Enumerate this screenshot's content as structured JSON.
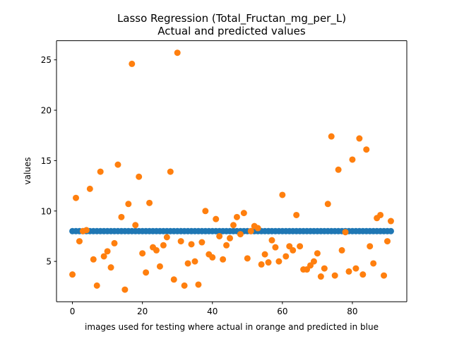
{
  "chart_data": {
    "type": "scatter",
    "title": "Lasso Regression (Total_Fructan_mg_per_L)",
    "subtitle": "Actual and predicted values",
    "xlabel": "images used for testing where actual in orange and predicted in blue",
    "ylabel": "values",
    "xlim": [
      -4.55,
      95.55
    ],
    "ylim": [
      1.0,
      26.9
    ],
    "xticks": [
      0,
      20,
      40,
      60,
      80
    ],
    "yticks": [
      5,
      10,
      15,
      20,
      25
    ],
    "grid": false,
    "series": [
      {
        "color": "#1f77b4",
        "x": [
          0,
          1,
          2,
          3,
          4,
          5,
          6,
          7,
          8,
          9,
          10,
          11,
          12,
          13,
          14,
          15,
          16,
          17,
          18,
          19,
          20,
          21,
          22,
          23,
          24,
          25,
          26,
          27,
          28,
          29,
          30,
          31,
          32,
          33,
          34,
          35,
          36,
          37,
          38,
          39,
          40,
          41,
          42,
          43,
          44,
          45,
          46,
          47,
          48,
          49,
          50,
          51,
          52,
          53,
          54,
          55,
          56,
          57,
          58,
          59,
          60,
          61,
          62,
          63,
          64,
          65,
          66,
          67,
          68,
          69,
          70,
          71,
          72,
          73,
          74,
          75,
          76,
          77,
          78,
          79,
          80,
          81,
          82,
          83,
          84,
          85,
          86,
          87,
          88,
          89,
          90,
          91
        ],
        "y": [
          8,
          8,
          8,
          8,
          8,
          8,
          8,
          8,
          8,
          8,
          8,
          8,
          8,
          8,
          8,
          8,
          8,
          8,
          8,
          8,
          8,
          8,
          8,
          8,
          8,
          8,
          8,
          8,
          8,
          8,
          8,
          8,
          8,
          8,
          8,
          8,
          8,
          8,
          8,
          8,
          8,
          8,
          8,
          8,
          8,
          8,
          8,
          8,
          8,
          8,
          8,
          8,
          8,
          8,
          8,
          8,
          8,
          8,
          8,
          8,
          8,
          8,
          8,
          8,
          8,
          8,
          8,
          8,
          8,
          8,
          8,
          8,
          8,
          8,
          8,
          8,
          8,
          8,
          8,
          8,
          8,
          8,
          8,
          8,
          8,
          8,
          8,
          8,
          8,
          8,
          8,
          8
        ]
      },
      {
        "color": "#ff7f0e",
        "x": [
          0,
          1,
          2,
          3,
          4,
          5,
          6,
          7,
          8,
          9,
          10,
          11,
          12,
          13,
          14,
          15,
          16,
          17,
          18,
          19,
          20,
          21,
          22,
          23,
          24,
          25,
          26,
          27,
          28,
          29,
          30,
          31,
          32,
          33,
          34,
          35,
          36,
          37,
          38,
          39,
          40,
          41,
          42,
          43,
          44,
          45,
          46,
          47,
          48,
          49,
          50,
          51,
          52,
          53,
          54,
          55,
          56,
          57,
          58,
          59,
          60,
          61,
          62,
          63,
          64,
          65,
          66,
          67,
          68,
          69,
          70,
          71,
          72,
          73,
          74,
          75,
          76,
          77,
          78,
          79,
          80,
          81,
          82,
          83,
          84,
          85,
          86,
          87,
          88,
          89,
          90,
          91
        ],
        "y": [
          3.7,
          11.3,
          7.0,
          8.0,
          8.1,
          12.2,
          5.2,
          2.6,
          13.9,
          5.5,
          6.0,
          4.4,
          6.8,
          14.6,
          9.4,
          2.2,
          10.7,
          24.6,
          8.6,
          13.4,
          5.8,
          3.9,
          10.8,
          6.4,
          6.1,
          4.5,
          6.6,
          7.4,
          13.9,
          3.2,
          25.7,
          7.0,
          2.6,
          4.8,
          6.7,
          5.0,
          2.7,
          6.9,
          10.0,
          5.7,
          5.4,
          9.2,
          7.5,
          5.2,
          6.6,
          7.3,
          8.6,
          9.4,
          7.7,
          9.8,
          5.3,
          8.0,
          8.5,
          8.3,
          4.7,
          5.7,
          4.9,
          7.1,
          6.4,
          5.0,
          11.6,
          5.5,
          6.5,
          6.1,
          9.6,
          6.5,
          4.2,
          4.2,
          4.6,
          5.0,
          5.8,
          3.5,
          4.3,
          10.7,
          17.4,
          3.6,
          14.1,
          6.1,
          7.9,
          4.0,
          15.1,
          4.3,
          17.2,
          3.7,
          16.1,
          6.5,
          4.8,
          9.3,
          9.6,
          3.6,
          7.0,
          9.0
        ]
      }
    ]
  }
}
